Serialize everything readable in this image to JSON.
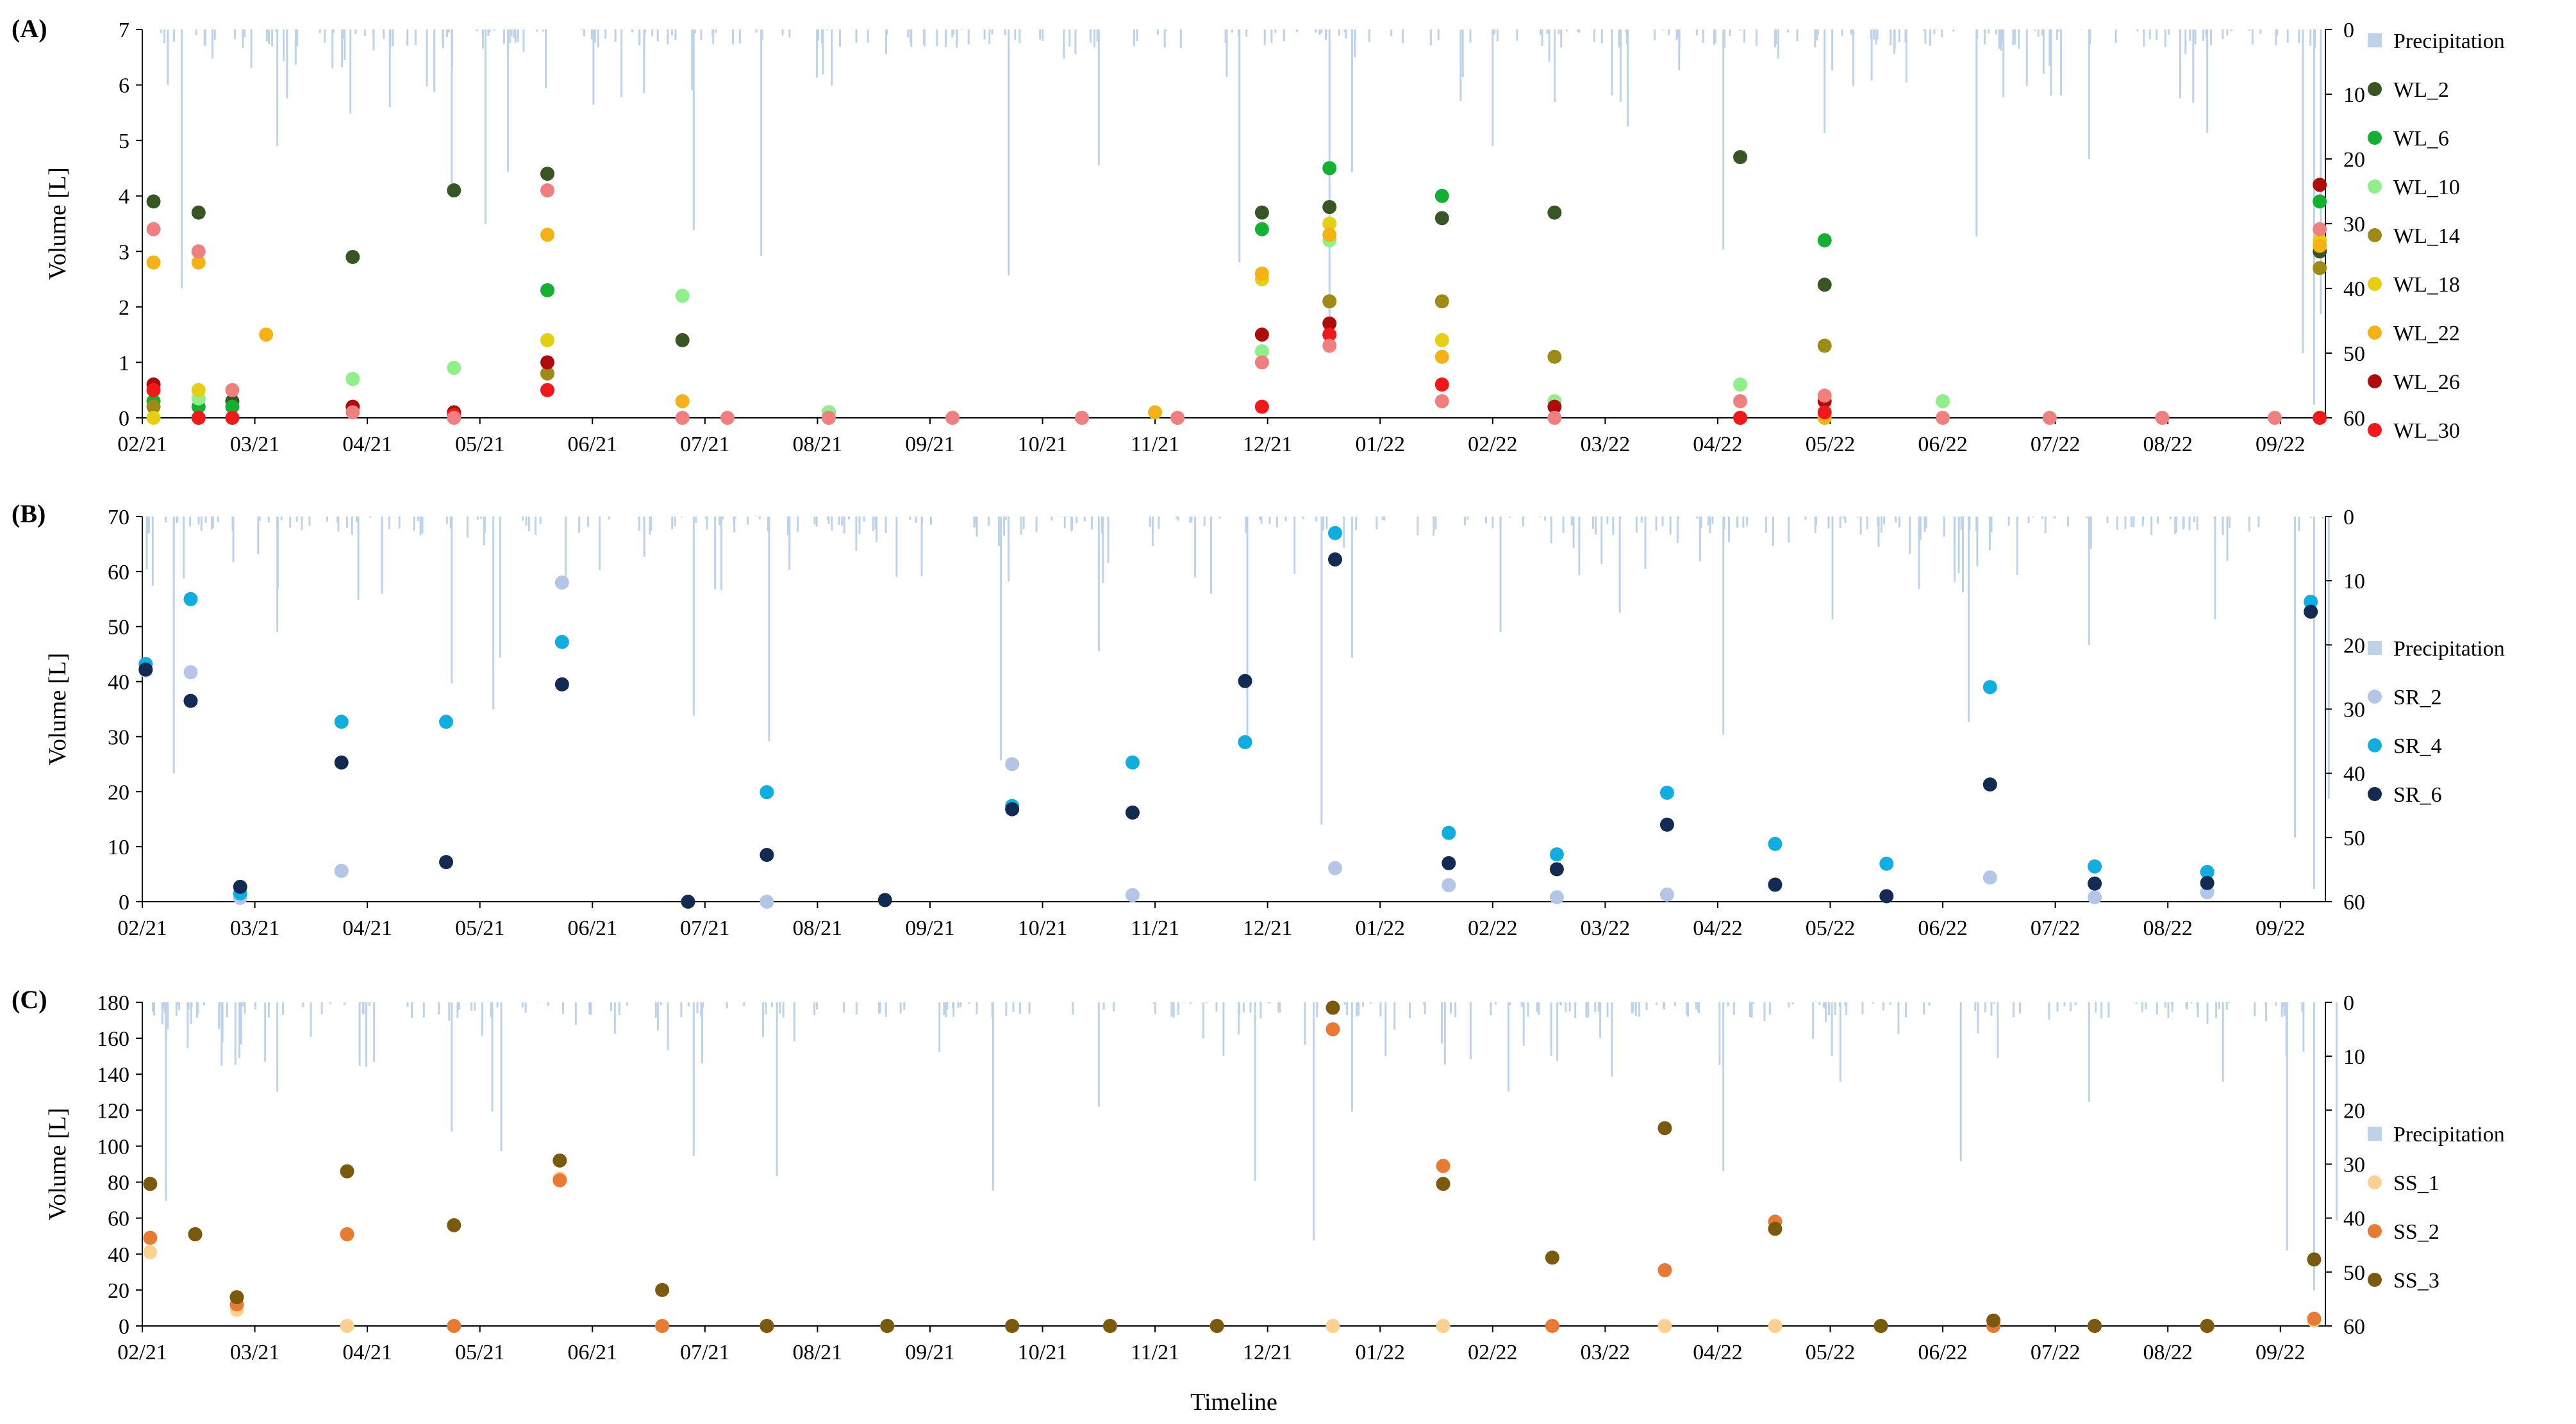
{
  "x_axis_label": "Timeline",
  "colors": {
    "Precipitation": "#bcd3ea",
    "WL_2": "#375623",
    "WL_6": "#13b032",
    "WL_10": "#8ff08a",
    "WL_14": "#9d8a17",
    "WL_18": "#e6cf12",
    "WL_22": "#f5b216",
    "WL_26": "#b00b0b",
    "WL_30": "#f01818",
    "WL_pink": "#f08080",
    "SR_2": "#b4c6e7",
    "SR_4": "#10aee0",
    "SR_6": "#132b52",
    "SS_1": "#fcd190",
    "SS_2": "#e87b34",
    "SS_3": "#7a5a0c"
  },
  "chart_data": [
    {
      "panel": "(A)",
      "type": "scatter",
      "ylabel": "Volume [L]",
      "ylim": [
        0,
        7
      ],
      "yticks": [
        "0",
        "1",
        "2",
        "3",
        "4",
        "5",
        "6",
        "7"
      ],
      "y2lim": [
        60,
        0
      ],
      "y2ticks": [
        "0",
        "10",
        "20",
        "30",
        "40",
        "50",
        "60"
      ],
      "xlim": [
        0,
        19.4
      ],
      "xticklabels": [
        "02/21",
        "03/21",
        "04/21",
        "05/21",
        "06/21",
        "07/21",
        "08/21",
        "09/21",
        "10/21",
        "11/21",
        "12/21",
        "01/22",
        "02/22",
        "03/22",
        "04/22",
        "05/22",
        "06/22",
        "07/22",
        "08/22",
        "09/22"
      ],
      "legend": [
        "Precipitation",
        "WL_2",
        "WL_6",
        "WL_10",
        "WL_14",
        "WL_18",
        "WL_22",
        "WL_26",
        "WL_30"
      ],
      "series": [
        {
          "name": "WL_2",
          "x": [
            0.1,
            0.5,
            0.8,
            1.87,
            2.77,
            3.6,
            4.8,
            6.1,
            9.95,
            10.55,
            11.55,
            12.55,
            14.2,
            14.95,
            19.35
          ],
          "y": [
            3.9,
            3.7,
            0.3,
            2.9,
            4.1,
            4.4,
            1.4,
            0.1,
            3.7,
            3.8,
            3.6,
            3.7,
            4.7,
            2.4,
            3.0
          ]
        },
        {
          "name": "WL_6",
          "x": [
            0.1,
            0.5,
            0.8,
            3.6,
            9.95,
            10.55,
            11.55,
            14.95,
            19.35
          ],
          "y": [
            0.3,
            0.2,
            0.2,
            2.3,
            3.4,
            4.5,
            4.0,
            3.2,
            3.9
          ]
        },
        {
          "name": "WL_10",
          "x": [
            0.5,
            1.87,
            2.77,
            4.8,
            6.1,
            9.95,
            10.55,
            12.55,
            14.2,
            16.0
          ],
          "y": [
            0.35,
            0.7,
            0.9,
            2.2,
            0.1,
            1.2,
            3.2,
            0.3,
            0.6,
            0.3
          ]
        },
        {
          "name": "WL_14",
          "x": [
            0.1,
            3.6,
            10.55,
            11.55,
            12.55,
            14.95,
            19.35
          ],
          "y": [
            0.2,
            0.8,
            2.1,
            2.1,
            1.1,
            1.3,
            2.7
          ]
        },
        {
          "name": "WL_18",
          "x": [
            0.1,
            0.5,
            3.6,
            9.95,
            10.55,
            11.55,
            14.2,
            19.35
          ],
          "y": [
            0.0,
            0.5,
            1.4,
            2.5,
            3.5,
            1.4,
            0.0,
            3.2
          ]
        },
        {
          "name": "WL_22",
          "x": [
            0.1,
            0.5,
            1.1,
            3.6,
            4.8,
            9.0,
            9.95,
            10.55,
            11.55,
            14.95,
            19.35
          ],
          "y": [
            2.8,
            2.8,
            1.5,
            3.3,
            0.3,
            0.1,
            2.6,
            3.3,
            1.1,
            0.0,
            3.1
          ]
        },
        {
          "name": "WL_26",
          "x": [
            0.1,
            1.87,
            2.77,
            3.6,
            9.95,
            10.55,
            12.55,
            14.95,
            19.35
          ],
          "y": [
            0.6,
            0.2,
            0.1,
            1.0,
            1.5,
            1.7,
            0.2,
            0.3,
            4.2
          ]
        },
        {
          "name": "WL_30",
          "x": [
            0.1,
            0.5,
            0.8,
            2.77,
            3.6,
            9.95,
            10.55,
            11.55,
            14.2,
            14.95,
            19.35
          ],
          "y": [
            0.5,
            0.0,
            0.0,
            0.05,
            0.5,
            0.2,
            1.5,
            0.6,
            0.0,
            0.1,
            0.0
          ]
        },
        {
          "name": "WL_pink",
          "x": [
            0.1,
            0.5,
            0.8,
            1.87,
            2.77,
            3.6,
            4.8,
            5.2,
            6.1,
            7.2,
            8.35,
            9.2,
            9.95,
            10.55,
            11.55,
            12.55,
            14.2,
            14.95,
            16.0,
            16.95,
            17.95,
            18.95,
            19.35
          ],
          "y": [
            3.4,
            3.0,
            0.5,
            0.1,
            0.0,
            4.1,
            0.0,
            0.0,
            0.0,
            0.0,
            0.0,
            0.0,
            1.0,
            1.3,
            0.3,
            0.0,
            0.3,
            0.4,
            0.0,
            0.0,
            0.0,
            0.0,
            3.4
          ]
        }
      ]
    },
    {
      "panel": "(B)",
      "type": "scatter",
      "ylabel": "Volume [L]",
      "ylim": [
        0,
        70
      ],
      "yticks": [
        "0",
        "10",
        "20",
        "30",
        "40",
        "50",
        "60",
        "70"
      ],
      "y2lim": [
        60,
        0
      ],
      "y2ticks": [
        "0",
        "10",
        "20",
        "30",
        "40",
        "50",
        "60"
      ],
      "xlim": [
        0,
        19.4
      ],
      "xticklabels": [
        "02/21",
        "03/21",
        "04/21",
        "05/21",
        "06/21",
        "07/21",
        "08/21",
        "09/21",
        "10/21",
        "11/21",
        "12/21",
        "01/22",
        "02/22",
        "03/22",
        "04/22",
        "05/22",
        "06/22",
        "07/22",
        "08/22",
        "09/22"
      ],
      "legend": [
        "Precipitation",
        "SR_2",
        "SR_4",
        "SR_6"
      ],
      "series": [
        {
          "name": "SR_2",
          "x": [
            0.03,
            0.43,
            0.87,
            1.77,
            3.73,
            5.55,
            7.73,
            8.8,
            10.6,
            11.61,
            12.57,
            13.55,
            14.51,
            16.42,
            17.35,
            18.35,
            19.27
          ],
          "y": [
            42,
            41.7,
            0.7,
            5.6,
            58,
            0,
            25,
            1.2,
            6.1,
            3.0,
            0.8,
            1.3,
            3.0,
            4.4,
            0.8,
            1.7,
            52.8
          ]
        },
        {
          "name": "SR_4",
          "x": [
            0.03,
            0.43,
            0.87,
            1.77,
            2.7,
            3.73,
            5.55,
            7.73,
            8.8,
            9.8,
            10.6,
            11.61,
            12.57,
            13.55,
            14.51,
            15.5,
            16.42,
            17.35,
            18.35,
            19.27
          ],
          "y": [
            43.2,
            55,
            1.5,
            32.7,
            32.7,
            47.2,
            19.9,
            17.4,
            25.3,
            29,
            67,
            12.5,
            8.6,
            19.8,
            10.5,
            6.9,
            39,
            6.4,
            5.4,
            54.5
          ]
        },
        {
          "name": "SR_6",
          "x": [
            0.03,
            0.43,
            0.87,
            1.77,
            2.7,
            3.73,
            4.85,
            5.55,
            6.6,
            7.73,
            8.8,
            9.8,
            10.6,
            11.61,
            12.57,
            13.55,
            14.51,
            15.5,
            16.42,
            17.35,
            18.35,
            19.27
          ],
          "y": [
            42.2,
            36.5,
            2.7,
            25.3,
            7.2,
            39.5,
            0,
            8.5,
            0.3,
            16.8,
            16.2,
            40.1,
            62.2,
            7.0,
            5.9,
            14.0,
            3.1,
            1.0,
            21.3,
            3.3,
            3.4,
            52.7
          ]
        }
      ]
    },
    {
      "panel": "(C)",
      "type": "scatter",
      "ylabel": "Volume [L]",
      "ylim": [
        0,
        180
      ],
      "yticks": [
        "0",
        "20",
        "40",
        "60",
        "80",
        "100",
        "120",
        "140",
        "160",
        "180"
      ],
      "y2lim": [
        60,
        0
      ],
      "y2ticks": [
        "0",
        "10",
        "20",
        "30",
        "40",
        "50",
        "60"
      ],
      "xlim": [
        0,
        19.4
      ],
      "xticklabels": [
        "02/21",
        "03/21",
        "04/21",
        "05/21",
        "06/21",
        "07/21",
        "08/21",
        "09/21",
        "10/21",
        "11/21",
        "12/21",
        "01/22",
        "02/22",
        "03/22",
        "04/22",
        "05/22",
        "06/22",
        "07/22",
        "08/22",
        "09/22"
      ],
      "legend": [
        "Precipitation",
        "SS_1",
        "SS_2",
        "SS_3"
      ],
      "series": [
        {
          "name": "SS_1",
          "x": [
            0.07,
            0.47,
            0.84,
            1.82,
            2.77,
            3.71,
            4.62,
            5.55,
            6.62,
            7.73,
            8.6,
            9.55,
            10.58,
            11.56,
            12.53,
            13.53,
            14.51,
            15.45,
            16.45,
            17.35,
            18.35,
            19.3
          ],
          "y": [
            41,
            51,
            9,
            0,
            0,
            82,
            0,
            0,
            0,
            0,
            0,
            0,
            0,
            0,
            0,
            0,
            0,
            0,
            0,
            0,
            0,
            3
          ]
        },
        {
          "name": "SS_2",
          "x": [
            0.07,
            0.47,
            0.84,
            1.82,
            2.77,
            3.71,
            4.62,
            5.55,
            6.62,
            7.73,
            8.6,
            9.55,
            10.58,
            11.56,
            12.53,
            13.53,
            14.51,
            15.45,
            16.45,
            17.35,
            18.35,
            19.3
          ],
          "y": [
            49,
            51,
            12,
            51,
            0,
            81,
            0,
            0,
            0,
            0,
            0,
            0,
            165,
            89,
            0,
            31,
            58,
            0,
            0,
            0,
            0,
            4
          ]
        },
        {
          "name": "SS_3",
          "x": [
            0.07,
            0.47,
            0.84,
            1.82,
            2.77,
            3.71,
            4.62,
            5.55,
            6.62,
            7.73,
            8.6,
            9.55,
            10.58,
            11.56,
            12.53,
            13.53,
            14.51,
            15.45,
            16.45,
            17.35,
            18.35,
            19.3
          ],
          "y": [
            79,
            51,
            16,
            86,
            56,
            92,
            20,
            0,
            0,
            0,
            0,
            0,
            177,
            79,
            38,
            110,
            54,
            0,
            3,
            0,
            0,
            37
          ]
        }
      ]
    }
  ]
}
